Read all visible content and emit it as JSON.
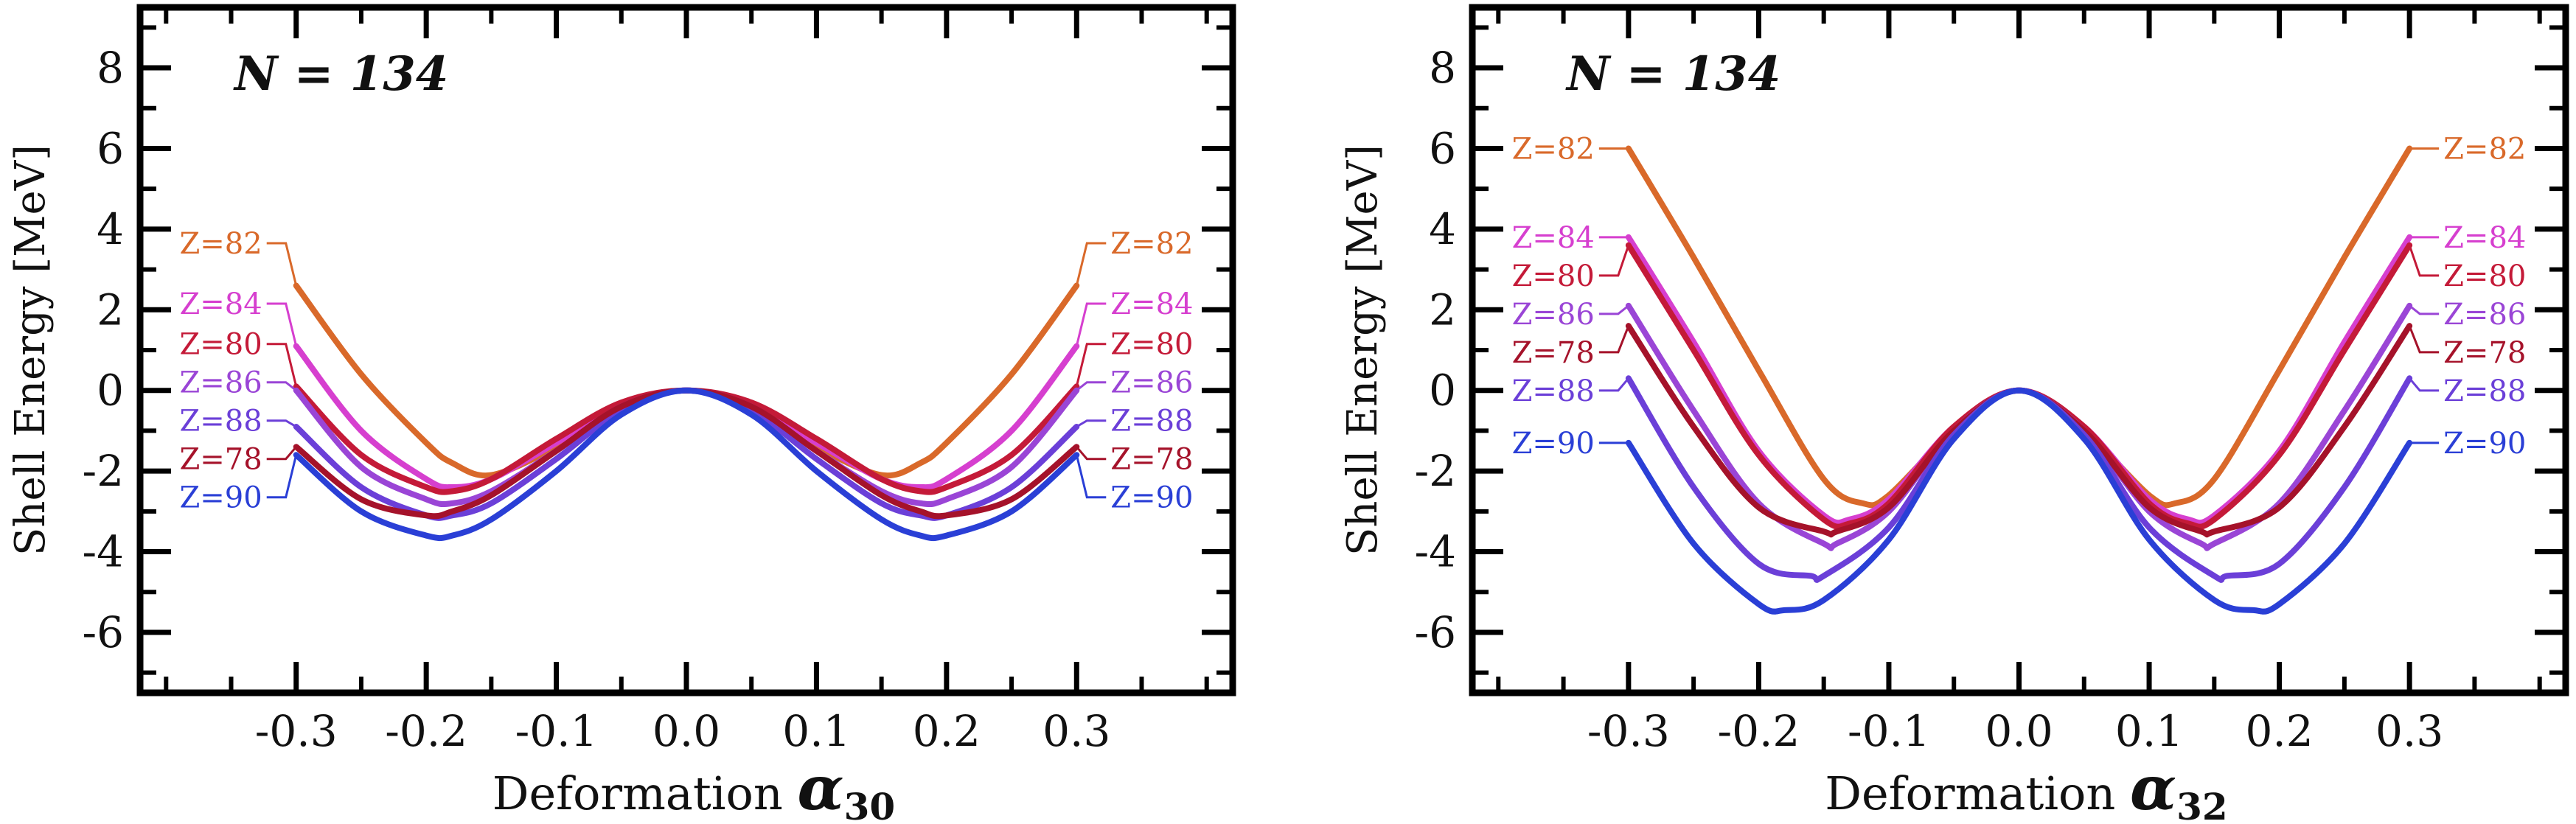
{
  "chart_data": [
    {
      "type": "line",
      "title": "N = 134",
      "xlabel": "Deformation ",
      "xlabel_symbol": "α",
      "xlabel_sub": "30",
      "ylabel": "Shell Energy [MeV]",
      "xlim": [
        -0.42,
        0.42
      ],
      "ylim": [
        -7.5,
        9.5
      ],
      "xticks": [
        "-0.3",
        "-0.2",
        "-0.1",
        "0.0",
        "0.1",
        "0.2",
        "0.3"
      ],
      "yticks": [
        "8",
        "6",
        "4",
        "2",
        "0",
        "-2",
        "-4",
        "-6"
      ],
      "grid": false,
      "series": [
        {
          "name": "Z=82",
          "color": "#d9692a",
          "x": [
            -0.3,
            -0.25,
            -0.2,
            -0.18,
            -0.15,
            -0.1,
            -0.05,
            0,
            0.05,
            0.1,
            0.15,
            0.18,
            0.2,
            0.25,
            0.3
          ],
          "y": [
            2.6,
            0.4,
            -1.3,
            -1.8,
            -2.1,
            -1.4,
            -0.4,
            0,
            -0.4,
            -1.4,
            -2.1,
            -1.8,
            -1.3,
            0.4,
            2.6
          ]
        },
        {
          "name": "Z=84",
          "color": "#d63fcf",
          "x": [
            -0.3,
            -0.25,
            -0.2,
            -0.18,
            -0.15,
            -0.1,
            -0.05,
            0,
            0.05,
            0.1,
            0.15,
            0.18,
            0.2,
            0.25,
            0.3
          ],
          "y": [
            1.1,
            -1.0,
            -2.2,
            -2.4,
            -2.2,
            -1.3,
            -0.4,
            0,
            -0.4,
            -1.3,
            -2.2,
            -2.4,
            -2.2,
            -1.0,
            1.1
          ]
        },
        {
          "name": "Z=80",
          "color": "#c41a38",
          "x": [
            -0.3,
            -0.25,
            -0.2,
            -0.18,
            -0.15,
            -0.1,
            -0.05,
            0,
            0.05,
            0.1,
            0.15,
            0.18,
            0.2,
            0.25,
            0.3
          ],
          "y": [
            0.1,
            -1.6,
            -2.4,
            -2.5,
            -2.2,
            -1.2,
            -0.3,
            0,
            -0.3,
            -1.2,
            -2.2,
            -2.5,
            -2.4,
            -1.6,
            0.1
          ]
        },
        {
          "name": "Z=86",
          "color": "#9a45d6",
          "x": [
            -0.3,
            -0.25,
            -0.2,
            -0.18,
            -0.15,
            -0.1,
            -0.05,
            0,
            0.05,
            0.1,
            0.15,
            0.18,
            0.2,
            0.25,
            0.3
          ],
          "y": [
            0.0,
            -1.9,
            -2.7,
            -2.8,
            -2.5,
            -1.5,
            -0.4,
            0,
            -0.4,
            -1.5,
            -2.5,
            -2.8,
            -2.7,
            -1.9,
            0.0
          ]
        },
        {
          "name": "Z=88",
          "color": "#6b3fd8",
          "x": [
            -0.3,
            -0.25,
            -0.2,
            -0.18,
            -0.15,
            -0.1,
            -0.05,
            0,
            0.05,
            0.1,
            0.15,
            0.18,
            0.2,
            0.25,
            0.3
          ],
          "y": [
            -0.9,
            -2.4,
            -3.1,
            -3.1,
            -2.8,
            -1.7,
            -0.5,
            0,
            -0.5,
            -1.7,
            -2.8,
            -3.1,
            -3.1,
            -2.4,
            -0.9
          ]
        },
        {
          "name": "Z=78",
          "color": "#a5122a",
          "x": [
            -0.3,
            -0.25,
            -0.2,
            -0.18,
            -0.15,
            -0.1,
            -0.05,
            0,
            0.05,
            0.1,
            0.15,
            0.18,
            0.2,
            0.25,
            0.3
          ],
          "y": [
            -1.4,
            -2.7,
            -3.1,
            -3.0,
            -2.6,
            -1.5,
            -0.4,
            0,
            -0.4,
            -1.5,
            -2.6,
            -3.0,
            -3.1,
            -2.7,
            -1.4
          ]
        },
        {
          "name": "Z=90",
          "color": "#2a3fd6",
          "x": [
            -0.3,
            -0.25,
            -0.2,
            -0.18,
            -0.15,
            -0.1,
            -0.05,
            0,
            0.05,
            0.1,
            0.15,
            0.18,
            0.2,
            0.25,
            0.3
          ],
          "y": [
            -1.6,
            -3.0,
            -3.6,
            -3.6,
            -3.2,
            -2.0,
            -0.6,
            0,
            -0.6,
            -2.0,
            -3.2,
            -3.6,
            -3.6,
            -3.0,
            -1.6
          ]
        }
      ]
    },
    {
      "type": "line",
      "title": "N = 134",
      "xlabel": "Deformation ",
      "xlabel_symbol": "α",
      "xlabel_sub": "32",
      "ylabel": "Shell Energy [MeV]",
      "xlim": [
        -0.42,
        0.42
      ],
      "ylim": [
        -7.5,
        9.5
      ],
      "xticks": [
        "-0.3",
        "-0.2",
        "-0.1",
        "0.0",
        "0.1",
        "0.2",
        "0.3"
      ],
      "yticks": [
        "8",
        "6",
        "4",
        "2",
        "0",
        "-2",
        "-4",
        "-6"
      ],
      "grid": false,
      "series": [
        {
          "name": "Z=82",
          "color": "#d9692a",
          "x": [
            -0.3,
            -0.25,
            -0.2,
            -0.15,
            -0.12,
            -0.1,
            -0.05,
            0,
            0.05,
            0.1,
            0.12,
            0.15,
            0.2,
            0.25,
            0.3
          ],
          "y": [
            6.0,
            3.3,
            0.5,
            -2.2,
            -2.8,
            -2.6,
            -1.0,
            0,
            -1.0,
            -2.6,
            -2.8,
            -2.2,
            0.5,
            3.3,
            6.0
          ]
        },
        {
          "name": "Z=84",
          "color": "#d63fcf",
          "x": [
            -0.3,
            -0.25,
            -0.2,
            -0.15,
            -0.13,
            -0.1,
            -0.05,
            0,
            0.05,
            0.1,
            0.13,
            0.15,
            0.2,
            0.25,
            0.3
          ],
          "y": [
            3.8,
            1.2,
            -1.5,
            -3.1,
            -3.2,
            -2.7,
            -0.9,
            0,
            -0.9,
            -2.7,
            -3.2,
            -3.1,
            -1.5,
            1.2,
            3.8
          ]
        },
        {
          "name": "Z=80",
          "color": "#c41a38",
          "x": [
            -0.3,
            -0.25,
            -0.2,
            -0.15,
            -0.13,
            -0.1,
            -0.05,
            0,
            0.05,
            0.1,
            0.13,
            0.15,
            0.2,
            0.25,
            0.3
          ],
          "y": [
            3.6,
            1.0,
            -1.6,
            -3.2,
            -3.3,
            -2.8,
            -0.9,
            0,
            -0.9,
            -2.8,
            -3.3,
            -3.2,
            -1.6,
            1.0,
            3.6
          ]
        },
        {
          "name": "Z=86",
          "color": "#9a45d6",
          "x": [
            -0.3,
            -0.25,
            -0.2,
            -0.15,
            -0.14,
            -0.1,
            -0.05,
            0,
            0.05,
            0.1,
            0.14,
            0.15,
            0.2,
            0.25,
            0.3
          ],
          "y": [
            2.1,
            -0.5,
            -2.8,
            -3.8,
            -3.8,
            -3.0,
            -1.0,
            0,
            -1.0,
            -3.0,
            -3.8,
            -3.8,
            -2.8,
            -0.5,
            2.1
          ]
        },
        {
          "name": "Z=78",
          "color": "#a5122a",
          "x": [
            -0.3,
            -0.25,
            -0.2,
            -0.15,
            -0.14,
            -0.1,
            -0.05,
            0,
            0.05,
            0.1,
            0.14,
            0.15,
            0.2,
            0.25,
            0.3
          ],
          "y": [
            1.6,
            -0.9,
            -2.9,
            -3.5,
            -3.5,
            -2.9,
            -1.0,
            0,
            -1.0,
            -2.9,
            -3.5,
            -3.5,
            -2.9,
            -0.9,
            1.6
          ]
        },
        {
          "name": "Z=88",
          "color": "#6b3fd8",
          "x": [
            -0.3,
            -0.25,
            -0.2,
            -0.16,
            -0.15,
            -0.1,
            -0.05,
            0,
            0.05,
            0.1,
            0.15,
            0.16,
            0.2,
            0.25,
            0.3
          ],
          "y": [
            0.3,
            -2.4,
            -4.3,
            -4.6,
            -4.6,
            -3.4,
            -1.1,
            0,
            -1.1,
            -3.4,
            -4.6,
            -4.6,
            -4.3,
            -2.4,
            0.3
          ]
        },
        {
          "name": "Z=90",
          "color": "#2a3fd6",
          "x": [
            -0.3,
            -0.25,
            -0.2,
            -0.18,
            -0.15,
            -0.1,
            -0.05,
            0,
            0.05,
            0.1,
            0.15,
            0.18,
            0.2,
            0.25,
            0.3
          ],
          "y": [
            -1.3,
            -3.8,
            -5.3,
            -5.45,
            -5.2,
            -3.7,
            -1.2,
            0,
            -1.2,
            -3.7,
            -5.2,
            -5.45,
            -5.3,
            -3.8,
            -1.3
          ]
        }
      ]
    }
  ]
}
